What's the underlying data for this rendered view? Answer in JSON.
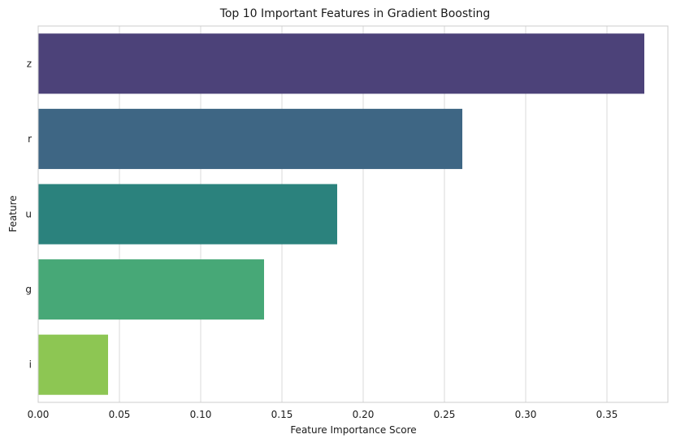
{
  "chart_data": {
    "type": "bar",
    "orientation": "horizontal",
    "title": "Top 10 Important Features in Gradient Boosting",
    "xlabel": "Feature Importance Score",
    "ylabel": "Feature",
    "categories": [
      "z",
      "r",
      "u",
      "g",
      "i"
    ],
    "values": [
      0.373,
      0.261,
      0.184,
      0.139,
      0.043
    ],
    "colors": [
      "#4c4279",
      "#3e6684",
      "#2b827d",
      "#47a877",
      "#8dc653"
    ],
    "xlim": [
      0,
      0.3875
    ],
    "xticks": [
      "0.00",
      "0.05",
      "0.10",
      "0.15",
      "0.20",
      "0.25",
      "0.30",
      "0.35"
    ],
    "grid": "vertical",
    "legend": "none"
  }
}
